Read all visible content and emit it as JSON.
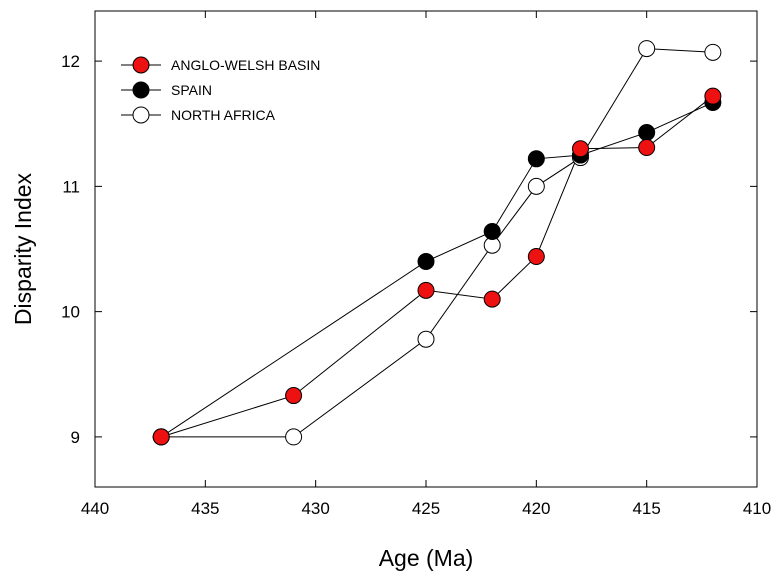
{
  "chart_data": {
    "type": "line",
    "title": "",
    "xlabel": "Age (Ma)",
    "ylabel": "Disparity Index",
    "xlim": [
      440,
      410
    ],
    "ylim": [
      8.6,
      12.4
    ],
    "x_reversed": true,
    "xticks": [
      "440",
      "435",
      "430",
      "425",
      "420",
      "415",
      "410"
    ],
    "yticks": [
      "9",
      "10",
      "11",
      "12"
    ],
    "grid": false,
    "legend_position": "top-left",
    "series": [
      {
        "name": "ANGLO-WELSH BASIN",
        "marker_fill": "#ee1111",
        "points": [
          {
            "x": 437,
            "y": 9.0
          },
          {
            "x": 431,
            "y": 9.33
          },
          {
            "x": 425,
            "y": 10.17
          },
          {
            "x": 422,
            "y": 10.1
          },
          {
            "x": 420,
            "y": 10.44
          },
          {
            "x": 418,
            "y": 11.3
          },
          {
            "x": 415,
            "y": 11.31
          },
          {
            "x": 412,
            "y": 11.72
          }
        ]
      },
      {
        "name": "SPAIN",
        "marker_fill": "#000000",
        "points": [
          {
            "x": 437,
            "y": 9.0
          },
          {
            "x": 425,
            "y": 10.4
          },
          {
            "x": 422,
            "y": 10.64
          },
          {
            "x": 420,
            "y": 11.22
          },
          {
            "x": 418,
            "y": 11.25
          },
          {
            "x": 415,
            "y": 11.43
          },
          {
            "x": 412,
            "y": 11.67
          }
        ]
      },
      {
        "name": "NORTH AFRICA",
        "marker_fill": "#ffffff",
        "points": [
          {
            "x": 437,
            "y": 9.0
          },
          {
            "x": 431,
            "y": 9.0
          },
          {
            "x": 425,
            "y": 9.78
          },
          {
            "x": 422,
            "y": 10.53
          },
          {
            "x": 420,
            "y": 11.0
          },
          {
            "x": 418,
            "y": 11.23
          },
          {
            "x": 415,
            "y": 12.1
          },
          {
            "x": 412,
            "y": 12.07
          }
        ]
      }
    ]
  }
}
